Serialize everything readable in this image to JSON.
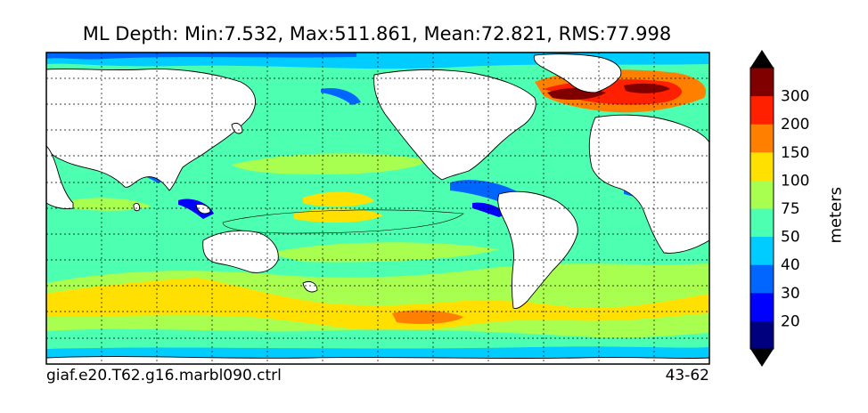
{
  "title": "ML Depth: Min:7.532, Max:511.861, Mean:72.821, RMS:77.998",
  "footer": {
    "case_name": "giaf.e20.T62.g16.marbl090.ctrl",
    "years": "43-62"
  },
  "colorbar": {
    "label": "meters",
    "extend": "both",
    "levels": [
      {
        "label": "",
        "color": "#00007f"
      },
      {
        "label": "20",
        "color": "#0000ff"
      },
      {
        "label": "30",
        "color": "#0066ff"
      },
      {
        "label": "40",
        "color": "#00ccff"
      },
      {
        "label": "50",
        "color": "#4dffb0"
      },
      {
        "label": "75",
        "color": "#a8ff50"
      },
      {
        "label": "100",
        "color": "#ffe000"
      },
      {
        "label": "150",
        "color": "#ff8000"
      },
      {
        "label": "200",
        "color": "#ff2000"
      },
      {
        "label": "300",
        "color": "#800000"
      }
    ],
    "under_color": "#000000",
    "over_color": "#000000"
  },
  "map": {
    "projection": "cylindrical",
    "grid": true,
    "land_color": "#ffffff"
  }
}
